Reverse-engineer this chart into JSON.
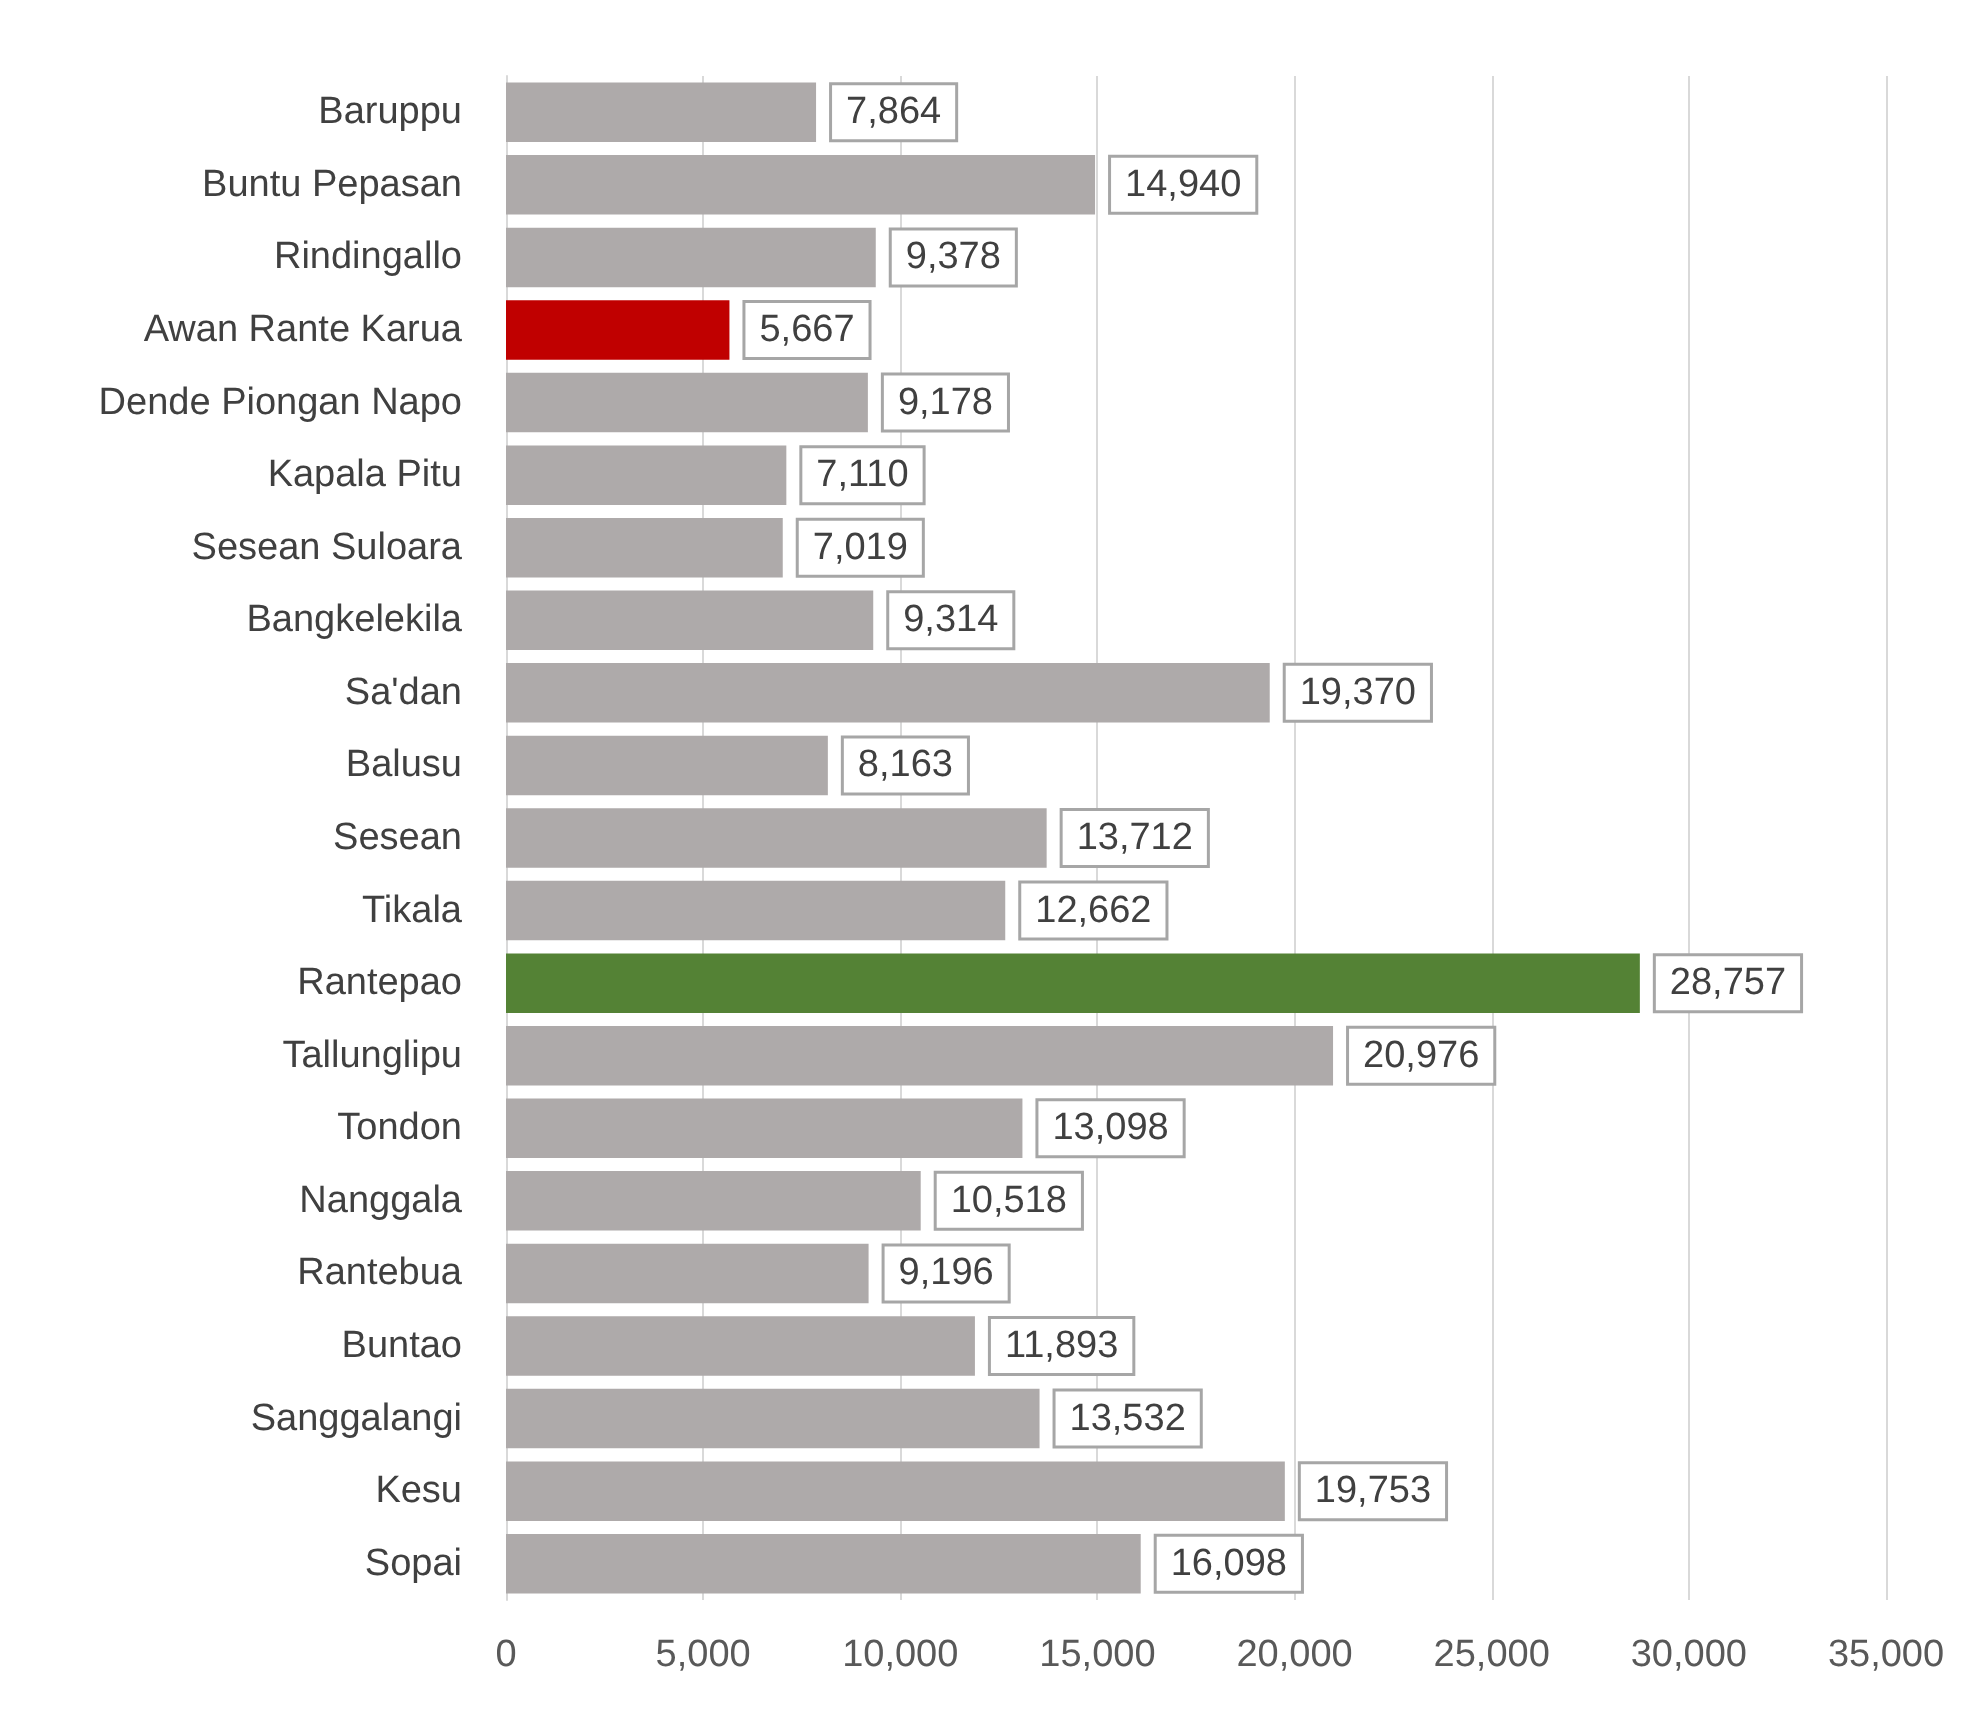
{
  "chart_data": {
    "type": "bar",
    "orientation": "horizontal",
    "categories": [
      "Baruppu",
      "Buntu Pepasan",
      "Rindingallo",
      "Awan Rante Karua",
      "Dende Piongan Napo",
      "Kapala Pitu",
      "Sesean Suloara",
      "Bangkelekila",
      "Sa'dan",
      "Balusu",
      "Sesean",
      "Tikala",
      "Rantepao",
      "Tallunglipu",
      "Tondon",
      "Nanggala",
      "Rantebua",
      "Buntao",
      "Sanggalangi",
      "Kesu",
      "Sopai"
    ],
    "values": [
      7864,
      14940,
      9378,
      5667,
      9178,
      7110,
      7019,
      9314,
      19370,
      8163,
      13712,
      12662,
      28757,
      20976,
      13098,
      10518,
      9196,
      11893,
      13532,
      19753,
      16098
    ],
    "value_labels": [
      "7,864",
      "14,940",
      "9,378",
      "5,667",
      "9,178",
      "7,110",
      "7,019",
      "9,314",
      "19,370",
      "8,163",
      "13,712",
      "12,662",
      "28,757",
      "20,976",
      "13,098",
      "10,518",
      "9,196",
      "11,893",
      "13,532",
      "19,753",
      "16,098"
    ],
    "colors": [
      "#aeaaaa",
      "#aeaaaa",
      "#aeaaaa",
      "#c00000",
      "#aeaaaa",
      "#aeaaaa",
      "#aeaaaa",
      "#aeaaaa",
      "#aeaaaa",
      "#aeaaaa",
      "#aeaaaa",
      "#aeaaaa",
      "#548235",
      "#aeaaaa",
      "#aeaaaa",
      "#aeaaaa",
      "#aeaaaa",
      "#aeaaaa",
      "#aeaaaa",
      "#aeaaaa",
      "#aeaaaa"
    ],
    "xlim": [
      0,
      35000
    ],
    "xticks": [
      0,
      {
        "value": 5000,
        "label": "5,000"
      },
      {
        "value": 10000,
        "label": "10,000"
      },
      {
        "value": 15000,
        "label": "15,000"
      },
      {
        "value": 20000,
        "label": "20,000"
      },
      {
        "value": 25000,
        "label": "25,000"
      },
      {
        "value": 30000,
        "label": "30,000"
      },
      {
        "value": 35000,
        "label": "35,000"
      }
    ],
    "grid": "x"
  }
}
